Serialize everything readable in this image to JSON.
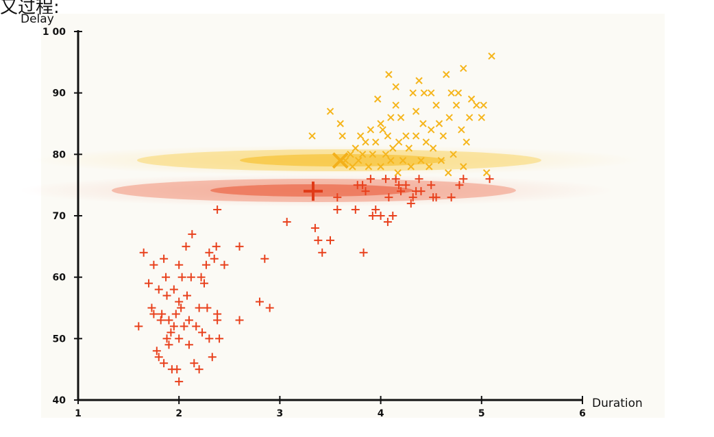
{
  "corner_text": "又过程:",
  "chart_data": {
    "type": "scatter",
    "title": "",
    "xlabel": "Duration",
    "ylabel": "Delay",
    "xlim": [
      1,
      6
    ],
    "ylim": [
      40,
      100
    ],
    "x_ticks": [
      "1",
      "2",
      "3",
      "4",
      "5",
      "6"
    ],
    "y_ticks": [
      "40",
      "50",
      "60",
      "70",
      "80",
      "90",
      "1 00"
    ],
    "grid": false,
    "legend": "none",
    "colors": {
      "plus": "#e8401c",
      "cross": "#f5b51c",
      "gaussian_red": "#ee5a35",
      "gaussian_yellow": "#f9c232",
      "plot_bg": "#fbfaf5",
      "axis": "#111111"
    },
    "series": [
      {
        "marker": "plus",
        "points": [
          [
            1.6,
            52
          ],
          [
            1.65,
            64
          ],
          [
            1.7,
            59
          ],
          [
            1.73,
            55
          ],
          [
            1.75,
            62
          ],
          [
            1.75,
            54
          ],
          [
            1.78,
            48
          ],
          [
            1.8,
            47
          ],
          [
            1.8,
            58
          ],
          [
            1.82,
            53
          ],
          [
            1.83,
            54
          ],
          [
            1.85,
            63
          ],
          [
            1.85,
            46
          ],
          [
            1.87,
            60
          ],
          [
            1.88,
            57
          ],
          [
            1.88,
            50
          ],
          [
            1.9,
            53
          ],
          [
            1.9,
            49
          ],
          [
            1.92,
            51
          ],
          [
            1.93,
            45
          ],
          [
            1.95,
            58
          ],
          [
            1.95,
            52
          ],
          [
            1.97,
            54
          ],
          [
            1.98,
            45
          ],
          [
            2.0,
            50
          ],
          [
            2.0,
            43
          ],
          [
            2.0,
            62
          ],
          [
            2.0,
            56
          ],
          [
            2.02,
            55
          ],
          [
            2.03,
            60
          ],
          [
            2.05,
            52
          ],
          [
            2.07,
            65
          ],
          [
            2.08,
            57
          ],
          [
            2.1,
            49
          ],
          [
            2.1,
            53
          ],
          [
            2.12,
            60
          ],
          [
            2.13,
            67
          ],
          [
            2.15,
            46
          ],
          [
            2.17,
            52
          ],
          [
            2.2,
            45
          ],
          [
            2.2,
            55
          ],
          [
            2.22,
            60
          ],
          [
            2.23,
            51
          ],
          [
            2.25,
            59
          ],
          [
            2.27,
            62
          ],
          [
            2.28,
            55
          ],
          [
            2.3,
            64
          ],
          [
            2.3,
            50
          ],
          [
            2.33,
            47
          ],
          [
            2.35,
            63
          ],
          [
            2.37,
            65
          ],
          [
            2.38,
            54
          ],
          [
            2.38,
            53
          ],
          [
            2.4,
            50
          ],
          [
            2.45,
            62
          ],
          [
            2.38,
            71
          ],
          [
            2.6,
            65
          ],
          [
            2.6,
            53
          ],
          [
            2.85,
            63
          ],
          [
            2.8,
            56
          ],
          [
            2.9,
            55
          ],
          [
            3.07,
            69
          ],
          [
            3.35,
            68
          ],
          [
            3.38,
            66
          ],
          [
            3.42,
            64
          ],
          [
            3.5,
            66
          ],
          [
            3.57,
            73
          ],
          [
            3.57,
            71
          ],
          [
            3.75,
            71
          ],
          [
            3.77,
            75
          ],
          [
            3.82,
            75
          ],
          [
            3.83,
            64
          ],
          [
            3.85,
            74
          ],
          [
            3.9,
            76
          ],
          [
            3.92,
            70
          ],
          [
            3.95,
            71
          ],
          [
            4.0,
            70
          ],
          [
            4.05,
            76
          ],
          [
            4.07,
            69
          ],
          [
            4.08,
            73
          ],
          [
            4.12,
            70
          ],
          [
            4.15,
            76
          ],
          [
            4.18,
            75
          ],
          [
            4.2,
            74
          ],
          [
            4.25,
            75
          ],
          [
            4.3,
            72
          ],
          [
            4.32,
            73
          ],
          [
            4.35,
            74
          ],
          [
            4.38,
            76
          ],
          [
            4.4,
            74
          ],
          [
            4.5,
            75
          ],
          [
            4.52,
            73
          ],
          [
            4.55,
            73
          ],
          [
            4.7,
            73
          ],
          [
            4.78,
            75
          ],
          [
            4.82,
            76
          ],
          [
            5.08,
            76
          ]
        ]
      },
      {
        "marker": "cross",
        "points": [
          [
            3.32,
            83
          ],
          [
            3.5,
            87
          ],
          [
            3.6,
            85
          ],
          [
            3.62,
            83
          ],
          [
            3.65,
            79
          ],
          [
            3.7,
            80
          ],
          [
            3.72,
            78
          ],
          [
            3.75,
            81
          ],
          [
            3.78,
            79
          ],
          [
            3.8,
            83
          ],
          [
            3.82,
            80
          ],
          [
            3.85,
            82
          ],
          [
            3.88,
            78
          ],
          [
            3.9,
            84
          ],
          [
            3.92,
            80
          ],
          [
            3.95,
            82
          ],
          [
            3.97,
            89
          ],
          [
            4.0,
            85
          ],
          [
            4.0,
            78
          ],
          [
            4.02,
            84
          ],
          [
            4.05,
            80
          ],
          [
            4.07,
            83
          ],
          [
            4.08,
            93
          ],
          [
            4.1,
            86
          ],
          [
            4.1,
            79
          ],
          [
            4.12,
            81
          ],
          [
            4.15,
            91
          ],
          [
            4.15,
            88
          ],
          [
            4.17,
            77
          ],
          [
            4.18,
            82
          ],
          [
            4.2,
            86
          ],
          [
            4.22,
            79
          ],
          [
            4.25,
            83
          ],
          [
            4.28,
            81
          ],
          [
            4.3,
            78
          ],
          [
            4.32,
            90
          ],
          [
            4.35,
            87
          ],
          [
            4.35,
            83
          ],
          [
            4.38,
            92
          ],
          [
            4.4,
            79
          ],
          [
            4.42,
            85
          ],
          [
            4.43,
            90
          ],
          [
            4.45,
            82
          ],
          [
            4.48,
            78
          ],
          [
            4.5,
            90
          ],
          [
            4.5,
            84
          ],
          [
            4.52,
            81
          ],
          [
            4.55,
            88
          ],
          [
            4.58,
            85
          ],
          [
            4.6,
            79
          ],
          [
            4.62,
            83
          ],
          [
            4.65,
            93
          ],
          [
            4.67,
            77
          ],
          [
            4.68,
            86
          ],
          [
            4.7,
            90
          ],
          [
            4.72,
            80
          ],
          [
            4.75,
            88
          ],
          [
            4.77,
            90
          ],
          [
            4.8,
            84
          ],
          [
            4.82,
            94
          ],
          [
            4.82,
            78
          ],
          [
            4.85,
            82
          ],
          [
            4.88,
            86
          ],
          [
            4.9,
            89
          ],
          [
            4.95,
            88
          ],
          [
            5.0,
            86
          ],
          [
            5.02,
            88
          ],
          [
            5.05,
            77
          ],
          [
            5.1,
            96
          ]
        ]
      }
    ],
    "clusters": [
      {
        "color_key": "gaussian_red",
        "mean": [
          3.33,
          74
        ],
        "marker": "plus"
      },
      {
        "color_key": "gaussian_yellow",
        "mean": [
          3.6,
          79
        ],
        "marker": "cross"
      }
    ]
  }
}
